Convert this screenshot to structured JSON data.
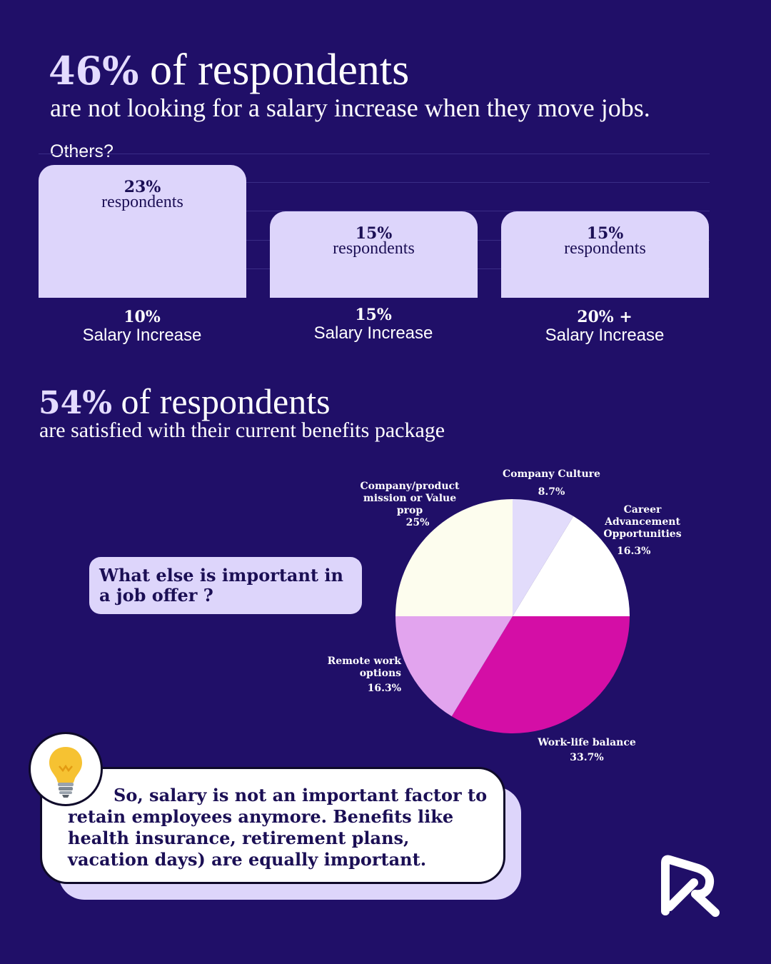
{
  "headline1": {
    "highlight": "46%",
    "rest": " of respondents",
    "subtitle": "are not looking for a salary increase when they move jobs."
  },
  "bar_section": {
    "others_label": "Others?",
    "unit": "respondents"
  },
  "headline2": {
    "highlight": "54%",
    "rest": " of respondents",
    "subtitle": "are satisfied with their current benefits package"
  },
  "question": "What else is important in a job offer ?",
  "callout": "So, salary is not an important factor to retain employees anymore. Benefits like health insurance, retirement plans, vacation days) are equally important.",
  "icons": {
    "bulb": "lightbulb-icon",
    "logo": "brand-logo-icon"
  },
  "colors": {
    "background": "#200f68",
    "accent_light": "#ddd5fb",
    "magenta": "#d40ea6"
  },
  "chart_data": [
    {
      "type": "bar",
      "categories": [
        "10%\nSalary Increase",
        "15%\nSalary Increase",
        "20% +\nSalary Increase"
      ],
      "category_values": [
        "10%",
        "15%",
        "20% +"
      ],
      "category_text": "Salary Increase",
      "values": [
        23,
        15,
        15
      ],
      "value_labels": [
        "23%",
        "15%",
        "15%"
      ],
      "ylim": [
        0,
        23
      ]
    },
    {
      "type": "pie",
      "slices": [
        {
          "label": "Company Culture",
          "value": 8.7,
          "display": "8.7%",
          "color": "#e2dcfb"
        },
        {
          "label": "Career Advancement Opportunities",
          "value": 16.3,
          "display": "16.3%",
          "color": "#ffffff"
        },
        {
          "label": "Work-life balance",
          "value": 33.7,
          "display": "33.7%",
          "color": "#d40ea6"
        },
        {
          "label": "Remote work options",
          "value": 16.3,
          "display": "16.3%",
          "color": "#e2a4ee"
        },
        {
          "label": "Company/product mission or Value prop",
          "value": 25,
          "display": "25%",
          "color": "#fdfdee"
        }
      ]
    }
  ]
}
